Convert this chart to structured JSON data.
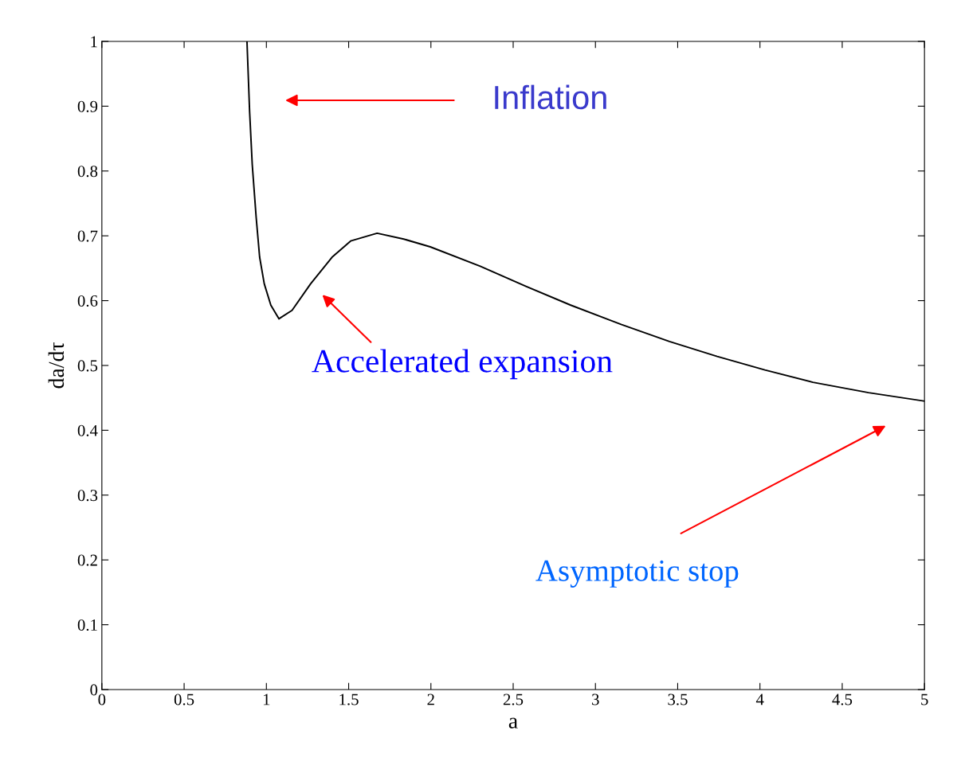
{
  "chart_data": {
    "type": "line",
    "xlabel": "a",
    "ylabel": "da/dτ",
    "x": [
      0.882,
      0.898,
      0.914,
      0.938,
      0.959,
      0.987,
      1.027,
      1.076,
      1.156,
      1.269,
      1.399,
      1.512,
      1.673,
      1.835,
      1.996,
      2.3,
      2.578,
      2.85,
      3.159,
      3.45,
      3.74,
      4.03,
      4.322,
      4.66,
      5.0
    ],
    "series": [
      {
        "color": "#000000",
        "values": [
          1.0,
          0.892,
          0.81,
          0.728,
          0.667,
          0.626,
          0.593,
          0.572,
          0.585,
          0.626,
          0.667,
          0.692,
          0.704,
          0.695,
          0.683,
          0.653,
          0.622,
          0.593,
          0.563,
          0.537,
          0.514,
          0.493,
          0.474,
          0.458,
          0.445
        ]
      }
    ],
    "xlim": [
      0,
      5
    ],
    "ylim": [
      0,
      1
    ],
    "xticks": [
      0,
      0.5,
      1,
      1.5,
      2,
      2.5,
      3,
      3.5,
      4,
      4.5,
      5
    ],
    "yticks": [
      0,
      0.1,
      0.2,
      0.3,
      0.4,
      0.5,
      0.6,
      0.7,
      0.8,
      0.9,
      1
    ],
    "grid": false,
    "legend": false,
    "marker": "none",
    "line_style": "solid",
    "annotations": [
      "Inflation",
      "Accelerated expansion",
      "Asymptotic stop"
    ]
  }
}
